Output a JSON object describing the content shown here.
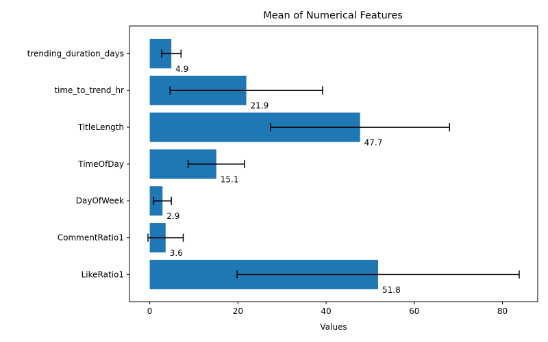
{
  "chart_data": {
    "type": "bar",
    "orientation": "horizontal",
    "title": "Mean of Numerical Features",
    "xlabel": "Values",
    "ylabel": "",
    "categories": [
      "trending_duration_days",
      "time_to_trend_hr",
      "TitleLength",
      "TimeOfDay",
      "DayOfWeek",
      "CommentRatio1",
      "LikeRatio1"
    ],
    "values": [
      4.9,
      21.9,
      47.7,
      15.1,
      2.9,
      3.6,
      51.8
    ],
    "value_labels": [
      "4.9",
      "21.9",
      "47.7",
      "15.1",
      "2.9",
      "3.6",
      "51.8"
    ],
    "error": [
      2.2,
      17.3,
      20.3,
      6.4,
      2.0,
      4.0,
      32.0
    ],
    "xlim": [
      -4.6,
      88.0
    ],
    "xticks": [
      0,
      20,
      40,
      60,
      80
    ],
    "xtick_labels": [
      "0",
      "20",
      "40",
      "60",
      "80"
    ],
    "bar_color": "#1f77b4",
    "error_color": "#000000",
    "grid": false,
    "legend": false
  }
}
